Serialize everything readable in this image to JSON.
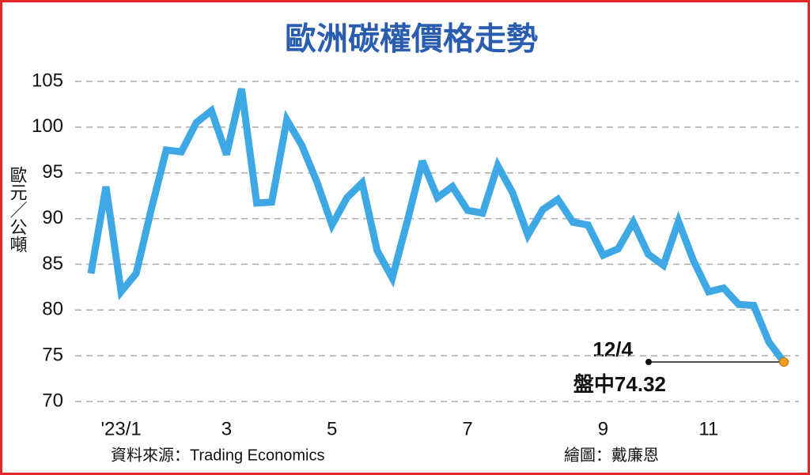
{
  "chart_data": {
    "type": "line",
    "title": "歐洲碳權價格走勢",
    "y_label": "歐元／公噸",
    "source": "資料來源：Trading Economics",
    "credit": "繪圖：戴廉恩",
    "annotation_date": "12/4",
    "annotation": "盤中74.32",
    "categories": [
      null,
      null,
      "'23/1",
      null,
      null,
      null,
      null,
      null,
      null,
      "3",
      null,
      null,
      null,
      null,
      null,
      null,
      "5",
      null,
      null,
      null,
      null,
      null,
      null,
      null,
      null,
      "7",
      null,
      null,
      null,
      null,
      null,
      null,
      null,
      null,
      "9",
      null,
      null,
      null,
      null,
      null,
      null,
      "11",
      null,
      null,
      null,
      null,
      null
    ],
    "values": [
      84,
      93.5,
      82,
      84,
      91,
      97.5,
      97.3,
      100.5,
      101.8,
      97,
      104.2,
      91.7,
      91.8,
      100.8,
      98,
      94,
      89.3,
      92.3,
      93.9,
      86.5,
      83.5,
      89.7,
      96.3,
      92.3,
      93.5,
      90.9,
      90.6,
      95.8,
      92.8,
      88.2,
      91,
      92.1,
      89.6,
      89.3,
      86,
      86.7,
      89.6,
      86.1,
      84.9,
      89.7,
      85.4,
      82,
      82.4,
      80.6,
      80.5,
      76.5,
      74.32
    ],
    "color": "#3ea8e5",
    "marker_color": "#f0a020",
    "ylim": [
      70,
      105
    ],
    "yticks": [
      70,
      75,
      80,
      85,
      90,
      95,
      100,
      105
    ],
    "grid": true
  }
}
